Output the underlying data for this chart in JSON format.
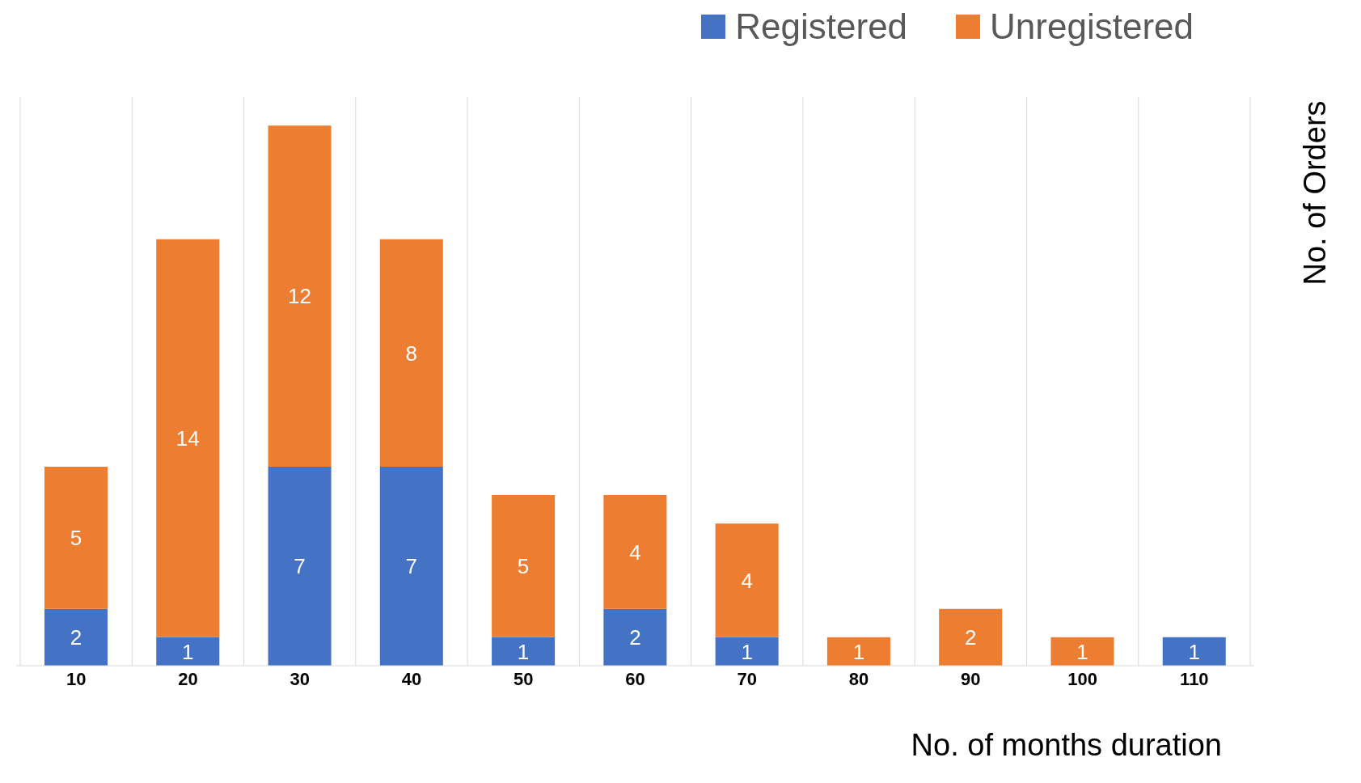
{
  "chart_data": {
    "type": "bar",
    "xlabel": "No. of months duration",
    "ylabel": "No. of Orders",
    "categories": [
      "10",
      "20",
      "30",
      "40",
      "50",
      "60",
      "70",
      "80",
      "90",
      "100",
      "110"
    ],
    "stacked": true,
    "data_labels": true,
    "grid": "x",
    "legend": "top right",
    "series": [
      {
        "name": "Registered",
        "color": "#4472c4",
        "values": [
          2,
          1,
          7,
          7,
          1,
          2,
          1,
          null,
          null,
          null,
          1
        ]
      },
      {
        "name": "Unregistered",
        "color": "#ed7d31",
        "values": [
          5,
          14,
          12,
          8,
          5,
          4,
          4,
          1,
          2,
          1,
          null
        ]
      }
    ]
  }
}
